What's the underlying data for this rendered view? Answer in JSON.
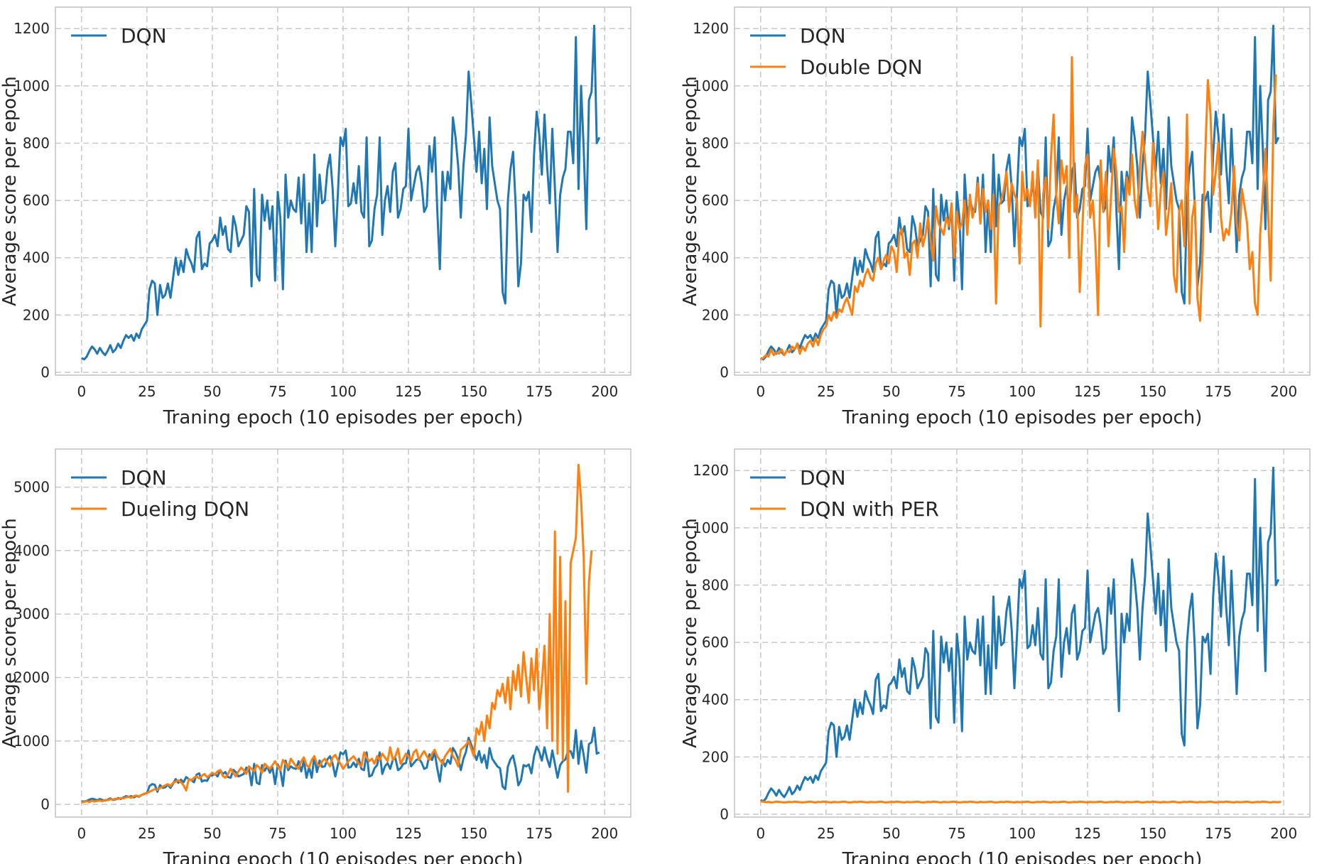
{
  "colors": {
    "dqn": "#1f77b4",
    "variant": "#ff7f0e",
    "grid": "#c8c8c8",
    "spine": "#c0c0c0"
  },
  "chart_data": [
    {
      "type": "line",
      "xlabel": "Traning epoch (10 episodes per epoch)",
      "ylabel": "Average score per epoch",
      "xlim": [
        -10,
        210
      ],
      "ylim": [
        -10,
        1275
      ],
      "xticks": [
        0,
        25,
        50,
        75,
        100,
        125,
        150,
        175,
        200
      ],
      "yticks": [
        0,
        200,
        400,
        600,
        800,
        1000,
        1200
      ],
      "grid": true,
      "legend_position": "top-left",
      "series": [
        {
          "name": "DQN",
          "key": "dqn"
        }
      ]
    },
    {
      "type": "line",
      "xlabel": "Traning epoch (10 episodes per epoch)",
      "ylabel": "Average score per epoch",
      "xlim": [
        -10,
        210
      ],
      "ylim": [
        -10,
        1275
      ],
      "xticks": [
        0,
        25,
        50,
        75,
        100,
        125,
        150,
        175,
        200
      ],
      "yticks": [
        0,
        200,
        400,
        600,
        800,
        1000,
        1200
      ],
      "grid": true,
      "legend_position": "top-left",
      "series": [
        {
          "name": "DQN",
          "key": "dqn"
        },
        {
          "name": "Double DQN",
          "key": "double"
        }
      ]
    },
    {
      "type": "line",
      "xlabel": "Traning epoch (10 episodes per epoch)",
      "ylabel": "Average score per epoch",
      "xlim": [
        -10,
        210
      ],
      "ylim": [
        -200,
        5600
      ],
      "xticks": [
        0,
        25,
        50,
        75,
        100,
        125,
        150,
        175,
        200
      ],
      "yticks": [
        0,
        1000,
        2000,
        3000,
        4000,
        5000
      ],
      "grid": true,
      "legend_position": "top-left",
      "series": [
        {
          "name": "DQN",
          "key": "dqn"
        },
        {
          "name": "Dueling DQN",
          "key": "dueling"
        }
      ]
    },
    {
      "type": "line",
      "xlabel": "Traning epoch (10 episodes per epoch)",
      "ylabel": "Average score per epoch",
      "xlim": [
        -10,
        210
      ],
      "ylim": [
        -10,
        1275
      ],
      "xticks": [
        0,
        25,
        50,
        75,
        100,
        125,
        150,
        175,
        200
      ],
      "yticks": [
        0,
        200,
        400,
        600,
        800,
        1000,
        1200
      ],
      "grid": true,
      "legend_position": "top-left",
      "series": [
        {
          "name": "DQN",
          "key": "dqn"
        },
        {
          "name": "DQN with PER",
          "key": "per"
        }
      ]
    }
  ],
  "series_values": {
    "dqn": [
      50,
      45,
      55,
      75,
      90,
      80,
      65,
      85,
      70,
      60,
      75,
      95,
      70,
      80,
      100,
      85,
      110,
      130,
      120,
      130,
      110,
      135,
      120,
      150,
      165,
      180,
      290,
      320,
      310,
      200,
      305,
      260,
      270,
      310,
      260,
      330,
      400,
      340,
      390,
      350,
      430,
      400,
      380,
      350,
      470,
      490,
      360,
      380,
      370,
      450,
      460,
      480,
      440,
      540,
      480,
      510,
      430,
      420,
      545,
      510,
      440,
      460,
      480,
      580,
      560,
      300,
      640,
      340,
      320,
      620,
      530,
      600,
      500,
      580,
      320,
      630,
      540,
      290,
      690,
      540,
      600,
      570,
      560,
      680,
      520,
      690,
      420,
      590,
      420,
      760,
      510,
      690,
      590,
      600,
      710,
      760,
      640,
      440,
      620,
      820,
      790,
      850,
      580,
      590,
      660,
      590,
      720,
      560,
      540,
      820,
      440,
      460,
      570,
      620,
      820,
      480,
      600,
      650,
      560,
      700,
      730,
      540,
      570,
      640,
      650,
      850,
      600,
      650,
      700,
      720,
      660,
      560,
      580,
      790,
      700,
      820,
      570,
      360,
      700,
      600,
      700,
      640,
      890,
      820,
      720,
      540,
      720,
      830,
      1050,
      940,
      820,
      700,
      840,
      660,
      780,
      570,
      890,
      720,
      660,
      600,
      570,
      280,
      240,
      600,
      710,
      770,
      580,
      300,
      380,
      620,
      600,
      630,
      490,
      760,
      910,
      830,
      690,
      900,
      720,
      590,
      850,
      640,
      420,
      620,
      680,
      710,
      840,
      840,
      730,
      1170,
      640,
      1000,
      780,
      500,
      950,
      980,
      1210,
      800,
      820
    ],
    "double": [
      45,
      50,
      60,
      55,
      80,
      60,
      70,
      65,
      80,
      60,
      75,
      70,
      90,
      80,
      100,
      65,
      90,
      75,
      100,
      110,
      90,
      120,
      95,
      130,
      150,
      160,
      200,
      180,
      210,
      190,
      220,
      210,
      240,
      260,
      230,
      200,
      300,
      280,
      320,
      300,
      340,
      360,
      330,
      320,
      380,
      400,
      360,
      390,
      410,
      380,
      440,
      420,
      350,
      480,
      500,
      400,
      420,
      340,
      450,
      460,
      400,
      520,
      440,
      480,
      540,
      460,
      390,
      580,
      520,
      500,
      480,
      540,
      510,
      590,
      400,
      560,
      500,
      520,
      600,
      480,
      620,
      540,
      580,
      660,
      520,
      640,
      560,
      600,
      500,
      620,
      240,
      580,
      600,
      640,
      700,
      560,
      660,
      620,
      600,
      380,
      700,
      600,
      640,
      580,
      700,
      540,
      740,
      160,
      620,
      680,
      500,
      750,
      900,
      620,
      520,
      740,
      660,
      720,
      400,
      1100,
      560,
      620,
      280,
      500,
      720,
      760,
      540,
      600,
      450,
      200,
      740,
      560,
      700,
      440,
      620,
      780,
      700,
      560,
      580,
      420,
      680,
      620,
      760,
      600,
      540,
      720,
      840,
      740,
      640,
      580,
      800,
      680,
      500,
      640,
      700,
      480,
      560,
      660,
      340,
      280,
      560,
      600,
      440,
      900,
      240,
      540,
      600,
      260,
      180,
      420,
      760,
      1020,
      900,
      620,
      700,
      800,
      540,
      460,
      500,
      480,
      560,
      720,
      520,
      460,
      640,
      580,
      520,
      360,
      420,
      240,
      200,
      480,
      620,
      780,
      560,
      320,
      860,
      1040
    ],
    "dueling": [
      30,
      40,
      50,
      35,
      60,
      45,
      55,
      60,
      50,
      70,
      65,
      80,
      75,
      90,
      85,
      100,
      95,
      110,
      120,
      105,
      130,
      140,
      125,
      150,
      170,
      180,
      200,
      220,
      240,
      230,
      260,
      280,
      300,
      320,
      290,
      340,
      360,
      380,
      350,
      300,
      220,
      400,
      380,
      420,
      440,
      410,
      450,
      480,
      430,
      460,
      500,
      470,
      520,
      540,
      450,
      420,
      480,
      560,
      500,
      440,
      520,
      580,
      540,
      480,
      600,
      560,
      520,
      620,
      580,
      500,
      640,
      600,
      560,
      620,
      680,
      600,
      540,
      700,
      640,
      580,
      720,
      660,
      600,
      560,
      680,
      740,
      620,
      580,
      700,
      760,
      640,
      600,
      680,
      720,
      660,
      600,
      740,
      780,
      700,
      640,
      560,
      620,
      680,
      720,
      760,
      700,
      640,
      600,
      820,
      740,
      680,
      720,
      640,
      760,
      700,
      800,
      740,
      680,
      900,
      700,
      760,
      880,
      640,
      720,
      800,
      760,
      680,
      820,
      860,
      700,
      780,
      840,
      760,
      700,
      800,
      860,
      760,
      700,
      640,
      760,
      820,
      880,
      760,
      700,
      600,
      860,
      900,
      940,
      1000,
      880,
      760,
      1200,
      1100,
      1300,
      1000,
      1400,
      1200,
      1600,
      1500,
      1800,
      1700,
      1900,
      1600,
      2000,
      1500,
      2100,
      1800,
      2200,
      1700,
      2400,
      2000,
      1600,
      2300,
      1800,
      2450,
      1500,
      1900,
      2500,
      1200,
      3000,
      1000,
      4300,
      800,
      3900,
      700,
      3200,
      200,
      3800,
      4000,
      4200,
      5350,
      4800,
      3900,
      1900,
      3500,
      4000
    ],
    "per": [
      45,
      44,
      42,
      43,
      41,
      42,
      44,
      43,
      42,
      41,
      42,
      43,
      42,
      44,
      43,
      42,
      41,
      42,
      43,
      44,
      42,
      41,
      43,
      42,
      44,
      43,
      42,
      41,
      43,
      42,
      42,
      43,
      44,
      42,
      41,
      42,
      43,
      42,
      44,
      43,
      42,
      41,
      43,
      42,
      42,
      43,
      44,
      42,
      41,
      42,
      43,
      42,
      44,
      43,
      42,
      41,
      43,
      42,
      42,
      43,
      44,
      42,
      41,
      42,
      43,
      42,
      44,
      43,
      42,
      41,
      43,
      42,
      42,
      43,
      44,
      42,
      41,
      42,
      43,
      42,
      44,
      43,
      42,
      41,
      43,
      42,
      42,
      43,
      44,
      42,
      41,
      42,
      43,
      42,
      44,
      43,
      42,
      41,
      43,
      42,
      42,
      43,
      44,
      42,
      41,
      42,
      43,
      42,
      44,
      43,
      42,
      41,
      43,
      42,
      42,
      43,
      44,
      42,
      41,
      42,
      43,
      42,
      44,
      43,
      42,
      41,
      43,
      42,
      42,
      43,
      44,
      42,
      41,
      42,
      43,
      42,
      44,
      43,
      42,
      41,
      43,
      42,
      42,
      43,
      44,
      42,
      41,
      42,
      43,
      42,
      44,
      43,
      42,
      41,
      43,
      42,
      42,
      43,
      44,
      42,
      41,
      42,
      43,
      42,
      44,
      43,
      42,
      41,
      43,
      42,
      42,
      43,
      44,
      42,
      41,
      42,
      43,
      42,
      44,
      43,
      42,
      41,
      43,
      42,
      42,
      43,
      44,
      42,
      41,
      42,
      43,
      42,
      44,
      43,
      42,
      41,
      43,
      42,
      42,
      43
    ]
  }
}
